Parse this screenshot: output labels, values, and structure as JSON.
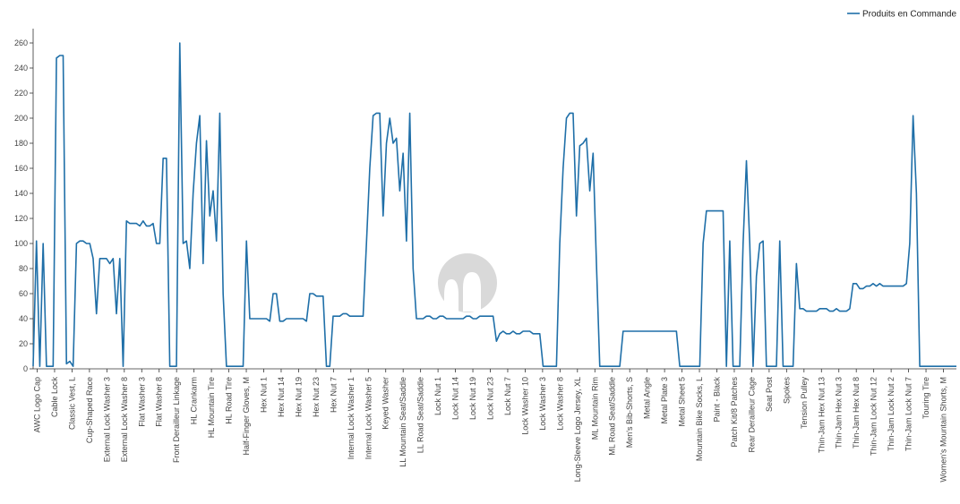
{
  "chart_data": {
    "type": "line",
    "title": "",
    "xlabel": "",
    "ylabel": "",
    "ylim": [
      0,
      270
    ],
    "yticks": [
      0,
      20,
      40,
      60,
      80,
      100,
      120,
      140,
      160,
      180,
      200,
      220,
      240,
      260
    ],
    "grid": false,
    "legend_position": "top-right",
    "series_color": "#1f6fa8",
    "watermark_icon": "brand-logo-watermark",
    "x_tick_labels": [
      "AWC Logo Cap",
      "Cable Lock",
      "Classic Vest, L",
      "Cup-Shaped Race",
      "External Lock Washer 3",
      "External Lock Washer 8",
      "Flat Washer 3",
      "Flat Washer 8",
      "Front Derailleur Linkage",
      "HL Crankarm",
      "HL Mountain Tire",
      "HL Road Tire",
      "Half-Finger Gloves, M",
      "Hex Nut 1",
      "Hex Nut 14",
      "Hex Nut 19",
      "Hex Nut 23",
      "Hex Nut 7",
      "Internal Lock Washer 1",
      "Internal Lock Washer 5",
      "Keyed Washer",
      "LL Mountain Seat/Saddle",
      "LL Road Seat/Saddle",
      "Lock Nut 1",
      "Lock Nut 14",
      "Lock Nut 19",
      "Lock Nut 23",
      "Lock Nut 7",
      "Lock Washer 10",
      "Lock Washer 3",
      "Lock Washer 8",
      "Long-Sleeve Logo Jersey, XL",
      "ML Mountain Rim",
      "ML Road Seat/Saddle",
      "Men's Bib-Shorts, S",
      "Metal Angle",
      "Metal Plate 3",
      "Metal Sheet 5",
      "Mountain Bike Socks, L",
      "Paint - Black",
      "Patch Kit/8 Patches",
      "Rear Derailleur Cage",
      "Seat Post",
      "Spokes",
      "Tension Pulley",
      "Thin-Jam Hex Nut 13",
      "Thin-Jam Hex Nut 3",
      "Thin-Jam Hex Nut 8",
      "Thin-Jam Lock Nut 12",
      "Thin-Jam Lock Nut 2",
      "Thin-Jam Lock Nut 7",
      "Touring Tire",
      "Women's Mountain Shorts, M"
    ],
    "series": [
      {
        "name": "Produits en Commande",
        "values": [
          2,
          102,
          2,
          100,
          2,
          2,
          2,
          248,
          250,
          250,
          4,
          6,
          2,
          100,
          102,
          102,
          100,
          100,
          88,
          44,
          88,
          88,
          88,
          84,
          88,
          44,
          88,
          2,
          118,
          116,
          116,
          116,
          114,
          118,
          114,
          114,
          116,
          100,
          100,
          168,
          168,
          2,
          2,
          2,
          260,
          100,
          102,
          80,
          140,
          180,
          202,
          84,
          182,
          122,
          142,
          102,
          204,
          60,
          2,
          2,
          2,
          2,
          2,
          2,
          102,
          40,
          40,
          40,
          40,
          40,
          40,
          38,
          60,
          60,
          38,
          38,
          40,
          40,
          40,
          40,
          40,
          40,
          38,
          60,
          60,
          58,
          58,
          58,
          2,
          2,
          42,
          42,
          42,
          44,
          44,
          42,
          42,
          42,
          42,
          42,
          100,
          160,
          202,
          204,
          204,
          122,
          180,
          200,
          180,
          184,
          142,
          172,
          102,
          204,
          80,
          40,
          40,
          40,
          42,
          42,
          40,
          40,
          42,
          42,
          40,
          40,
          40,
          40,
          40,
          40,
          42,
          42,
          40,
          40,
          42,
          42,
          42,
          42,
          42,
          22,
          28,
          30,
          28,
          28,
          30,
          28,
          28,
          30,
          30,
          30,
          28,
          28,
          28,
          2,
          2,
          2,
          2,
          2,
          100,
          160,
          200,
          204,
          204,
          122,
          178,
          180,
          184,
          142,
          172,
          84,
          2,
          2,
          2,
          2,
          2,
          2,
          2,
          30,
          30,
          30,
          30,
          30,
          30,
          30,
          30,
          30,
          30,
          30,
          30,
          30,
          30,
          30,
          30,
          30,
          2,
          2,
          2,
          2,
          2,
          2,
          2,
          100,
          126,
          126,
          126,
          126,
          126,
          126,
          2,
          102,
          2,
          2,
          2,
          100,
          166,
          100,
          2,
          74,
          100,
          102,
          2,
          2,
          2,
          2,
          102,
          2,
          2,
          2,
          2,
          84,
          48,
          48,
          46,
          46,
          46,
          46,
          48,
          48,
          48,
          46,
          46,
          48,
          46,
          46,
          46,
          48,
          68,
          68,
          64,
          64,
          66,
          66,
          68,
          66,
          68,
          66,
          66,
          66,
          66,
          66,
          66,
          66,
          68,
          100,
          202,
          140,
          2,
          2,
          2,
          2,
          2,
          2,
          2,
          2,
          2,
          2,
          2,
          2
        ]
      }
    ]
  }
}
